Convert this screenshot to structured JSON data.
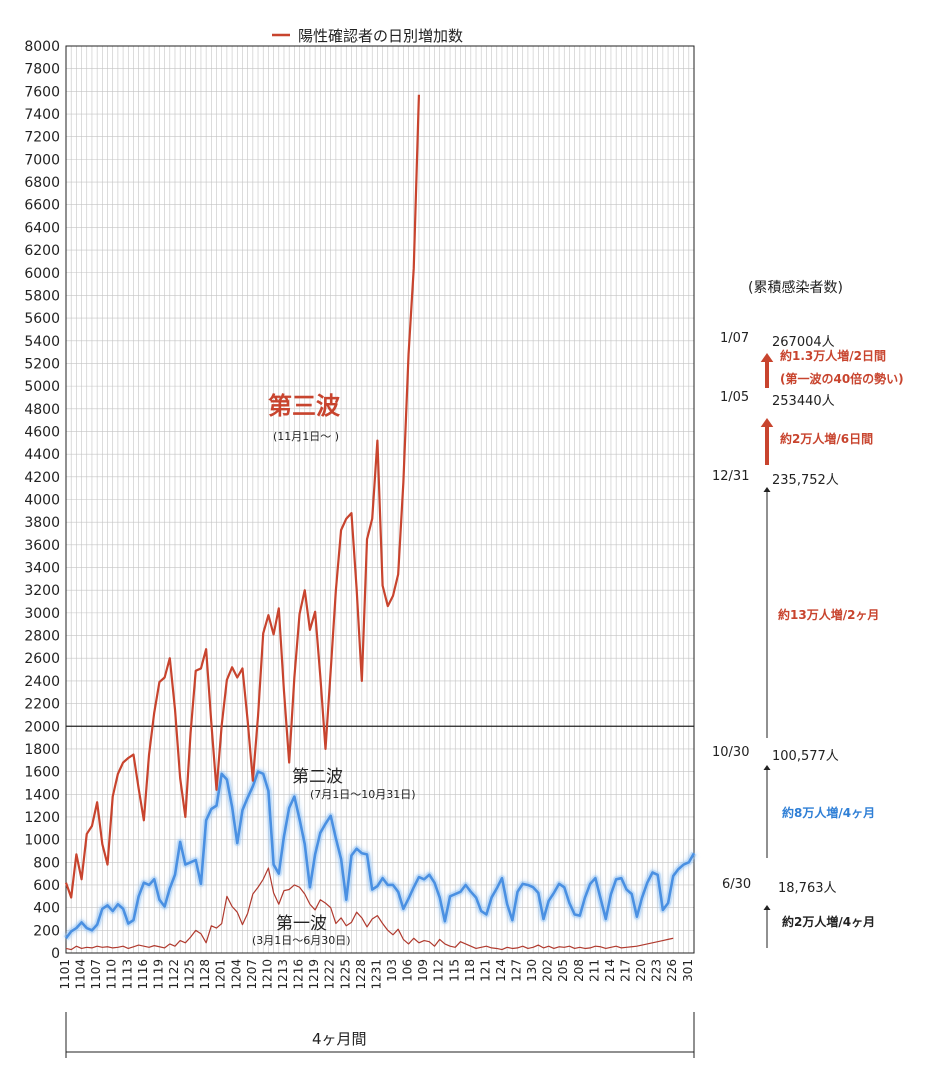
{
  "chart_data": {
    "type": "line",
    "legend": "陽性確認者の日別増加数",
    "ylim": [
      0,
      8000
    ],
    "y_ticks": [
      0,
      200,
      400,
      600,
      800,
      1000,
      1200,
      1400,
      1600,
      1800,
      2000,
      2200,
      2400,
      2600,
      2800,
      3000,
      3200,
      3400,
      3600,
      3800,
      4000,
      4200,
      4400,
      4600,
      4800,
      5000,
      5200,
      5400,
      5600,
      5800,
      6000,
      6200,
      6400,
      6600,
      6800,
      7000,
      7200,
      7400,
      7600,
      7800,
      8000
    ],
    "x_ticks": [
      "1101",
      "1104",
      "1107",
      "1110",
      "1113",
      "1116",
      "1119",
      "1122",
      "1125",
      "1128",
      "1201",
      "1204",
      "1207",
      "1210",
      "1213",
      "1216",
      "1219",
      "1222",
      "1225",
      "1228",
      "1231",
      "103",
      "106",
      "109",
      "112",
      "115",
      "118",
      "121",
      "124",
      "127",
      "130",
      "202",
      "205",
      "208",
      "211",
      "214",
      "217",
      "220",
      "223",
      "226",
      "301"
    ],
    "x_span_label": "4ヶ月間",
    "series": [
      {
        "name": "第三波",
        "color": "#c8442e",
        "values": [
          620,
          490,
          870,
          650,
          1050,
          1120,
          1330,
          960,
          780,
          1380,
          1580,
          1680,
          1720,
          1750,
          1450,
          1170,
          1750,
          2120,
          2390,
          2430,
          2600,
          2150,
          1540,
          1200,
          1940,
          2490,
          2510,
          2680,
          2030,
          1440,
          2010,
          2410,
          2520,
          2430,
          2510,
          2050,
          1520,
          2090,
          2820,
          2980,
          2810,
          3040,
          2310,
          1680,
          2430,
          2990,
          3200,
          2850,
          3010,
          2440,
          1800,
          2490,
          3200,
          3730,
          3830,
          3880,
          3210,
          2400,
          3650,
          3830,
          4520,
          3240,
          3060,
          3150,
          3340,
          4150,
          5280,
          6040,
          7570
        ]
      },
      {
        "name": "第二波",
        "color": "#4a90e2",
        "values": [
          130,
          190,
          220,
          270,
          220,
          200,
          250,
          390,
          420,
          370,
          430,
          390,
          260,
          290,
          500,
          620,
          600,
          650,
          470,
          410,
          570,
          690,
          980,
          780,
          800,
          820,
          610,
          1170,
          1270,
          1300,
          1580,
          1530,
          1290,
          970,
          1260,
          1370,
          1470,
          1600,
          1580,
          1430,
          780,
          700,
          1030,
          1280,
          1380,
          1180,
          960,
          580,
          870,
          1060,
          1140,
          1210,
          1010,
          830,
          470,
          860,
          920,
          880,
          870,
          560,
          590,
          660,
          600,
          600,
          540,
          390,
          480,
          580,
          670,
          650,
          690,
          620,
          490,
          280,
          500,
          520,
          540,
          600,
          540,
          490,
          370,
          340,
          490,
          570,
          660,
          430,
          290,
          540,
          610,
          600,
          580,
          530,
          300,
          460,
          530,
          610,
          580,
          440,
          340,
          330,
          490,
          610,
          660,
          480,
          300,
          520,
          650,
          660,
          560,
          520,
          320,
          490,
          620,
          710,
          690,
          380,
          440,
          680,
          740,
          780,
          800,
          880
        ]
      },
      {
        "name": "第一波",
        "color": "#b03a2e",
        "values": [
          40,
          30,
          60,
          40,
          50,
          45,
          60,
          50,
          55,
          45,
          50,
          60,
          40,
          55,
          70,
          60,
          50,
          65,
          55,
          45,
          80,
          60,
          110,
          90,
          140,
          200,
          170,
          90,
          240,
          220,
          260,
          500,
          410,
          360,
          250,
          350,
          520,
          580,
          650,
          750,
          530,
          430,
          550,
          560,
          600,
          580,
          520,
          430,
          380,
          470,
          440,
          400,
          260,
          310,
          240,
          270,
          360,
          310,
          230,
          300,
          330,
          260,
          200,
          160,
          210,
          120,
          80,
          130,
          90,
          110,
          100,
          60,
          120,
          80,
          60,
          50,
          100,
          80,
          60,
          40,
          50,
          60,
          45,
          40,
          30,
          50,
          40,
          45,
          60,
          40,
          50,
          70,
          45,
          60,
          40,
          55,
          50,
          60,
          40,
          50,
          40,
          45,
          60,
          55,
          40,
          50,
          60,
          45,
          50,
          55,
          60,
          70,
          80,
          90,
          100,
          110,
          120,
          130
        ]
      }
    ]
  },
  "wave_labels": {
    "third": {
      "title": "第三波",
      "sub": "(11月1日〜 )"
    },
    "second": {
      "title": "第二波",
      "sub": "(7月1日〜10月31日)"
    },
    "first": {
      "title": "第一波",
      "sub": "(3月1日〜6月30日)"
    }
  },
  "cumulative": {
    "header": "(累積感染者数)",
    "rows": [
      {
        "date": "1/07",
        "count": "267004人"
      },
      {
        "date": "1/05",
        "count": "253440人"
      },
      {
        "date": "12/31",
        "count": "235,752人"
      },
      {
        "date": "10/30",
        "count": "100,577人"
      },
      {
        "date": "6/30",
        "count": "18,763人"
      }
    ],
    "increments": [
      {
        "text": "約1.3万人増/2日間",
        "color": "#c8442e"
      },
      {
        "text": "(第一波の40倍の勢い)",
        "color": "#c8442e"
      },
      {
        "text": "約2万人増/6日間",
        "color": "#c8442e"
      },
      {
        "text": "約13万人増/2ヶ月",
        "color": "#c8442e"
      },
      {
        "text": "約8万人増/4ヶ月",
        "color": "#2f7fd6"
      },
      {
        "text": "約2万人増/4ヶ月",
        "color": "#222222"
      }
    ]
  }
}
